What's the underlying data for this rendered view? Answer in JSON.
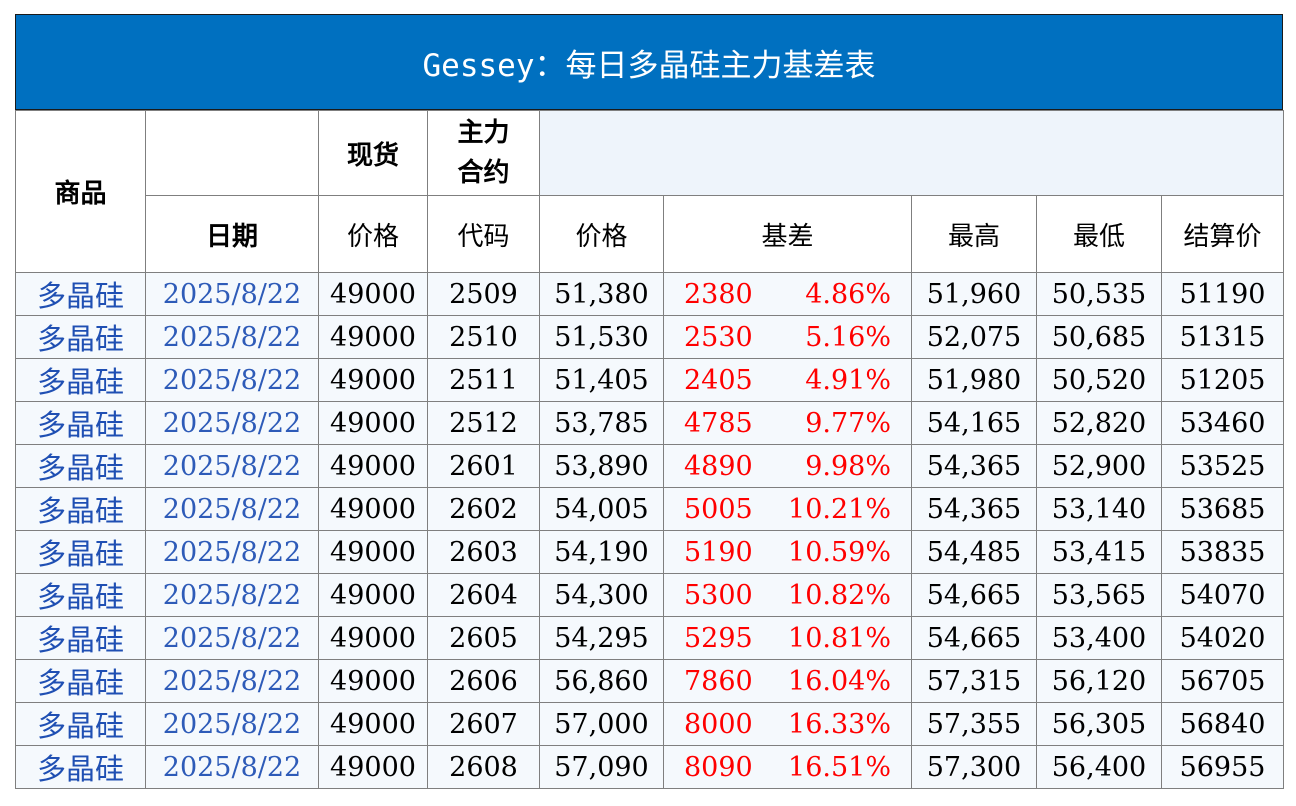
{
  "title": "Gessey：每日多晶硅主力基差表",
  "header": {
    "product": "商品",
    "spot": "现货",
    "main_contract": "主力\n合约",
    "main_contract_line1": "主力",
    "main_contract_line2": "合约",
    "date": "日期",
    "spot_price": "价格",
    "code": "代码",
    "price": "价格",
    "basis": "基差",
    "high": "最高",
    "low": "最低",
    "settle": "结算价"
  },
  "rows": [
    {
      "product": "多晶硅",
      "date": "2025/8/22",
      "spot": "49000",
      "code": "2509",
      "price": "51,380",
      "basis": "2380",
      "pct": "4.86%",
      "high": "51,960",
      "low": "50,535",
      "settle": "51190"
    },
    {
      "product": "多晶硅",
      "date": "2025/8/22",
      "spot": "49000",
      "code": "2510",
      "price": "51,530",
      "basis": "2530",
      "pct": "5.16%",
      "high": "52,075",
      "low": "50,685",
      "settle": "51315"
    },
    {
      "product": "多晶硅",
      "date": "2025/8/22",
      "spot": "49000",
      "code": "2511",
      "price": "51,405",
      "basis": "2405",
      "pct": "4.91%",
      "high": "51,980",
      "low": "50,520",
      "settle": "51205"
    },
    {
      "product": "多晶硅",
      "date": "2025/8/22",
      "spot": "49000",
      "code": "2512",
      "price": "53,785",
      "basis": "4785",
      "pct": "9.77%",
      "high": "54,165",
      "low": "52,820",
      "settle": "53460"
    },
    {
      "product": "多晶硅",
      "date": "2025/8/22",
      "spot": "49000",
      "code": "2601",
      "price": "53,890",
      "basis": "4890",
      "pct": "9.98%",
      "high": "54,365",
      "low": "52,900",
      "settle": "53525"
    },
    {
      "product": "多晶硅",
      "date": "2025/8/22",
      "spot": "49000",
      "code": "2602",
      "price": "54,005",
      "basis": "5005",
      "pct": "10.21%",
      "high": "54,365",
      "low": "53,140",
      "settle": "53685"
    },
    {
      "product": "多晶硅",
      "date": "2025/8/22",
      "spot": "49000",
      "code": "2603",
      "price": "54,190",
      "basis": "5190",
      "pct": "10.59%",
      "high": "54,485",
      "low": "53,415",
      "settle": "53835"
    },
    {
      "product": "多晶硅",
      "date": "2025/8/22",
      "spot": "49000",
      "code": "2604",
      "price": "54,300",
      "basis": "5300",
      "pct": "10.82%",
      "high": "54,665",
      "low": "53,565",
      "settle": "54070"
    },
    {
      "product": "多晶硅",
      "date": "2025/8/22",
      "spot": "49000",
      "code": "2605",
      "price": "54,295",
      "basis": "5295",
      "pct": "10.81%",
      "high": "54,665",
      "low": "53,400",
      "settle": "54020"
    },
    {
      "product": "多晶硅",
      "date": "2025/8/22",
      "spot": "49000",
      "code": "2606",
      "price": "56,860",
      "basis": "7860",
      "pct": "16.04%",
      "high": "57,315",
      "low": "56,120",
      "settle": "56705"
    },
    {
      "product": "多晶硅",
      "date": "2025/8/22",
      "spot": "49000",
      "code": "2607",
      "price": "57,000",
      "basis": "8000",
      "pct": "16.33%",
      "high": "57,355",
      "low": "56,305",
      "settle": "56840"
    },
    {
      "product": "多晶硅",
      "date": "2025/8/22",
      "spot": "49000",
      "code": "2608",
      "price": "57,090",
      "basis": "8090",
      "pct": "16.51%",
      "high": "57,300",
      "low": "56,400",
      "settle": "56955"
    }
  ],
  "colors": {
    "title_bg": "#0070C0",
    "title_text": "#FFFFFF",
    "product_text": "#1F4FB3",
    "date_text": "#2E5BB8",
    "basis_text": "#FF0000",
    "row_bg": "#F5F9FD",
    "header_light_bg": "#EEF4FB"
  }
}
